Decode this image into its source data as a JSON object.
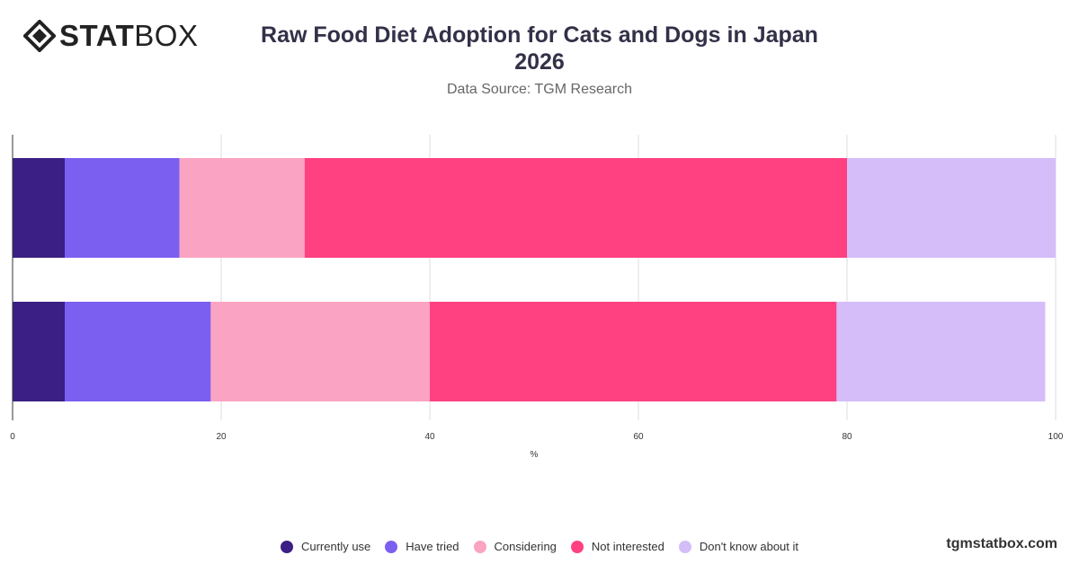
{
  "brand": {
    "logo_strong": "STAT",
    "logo_light": "BOX",
    "footer": "tgmstatbox.com"
  },
  "header": {
    "title_line1": "Raw Food Diet Adoption for Cats and Dogs in Japan",
    "title_line2": "2026",
    "subtitle": "Data Source: TGM Research"
  },
  "chart_data": {
    "type": "bar",
    "orientation": "horizontal",
    "stacked": true,
    "categories": [
      "",
      ""
    ],
    "series": [
      {
        "name": "Currently use",
        "color": "#3b1f84",
        "values": [
          5,
          5
        ]
      },
      {
        "name": "Have tried",
        "color": "#7b5ff0",
        "values": [
          11,
          14
        ]
      },
      {
        "name": "Considering",
        "color": "#fba3c3",
        "values": [
          12,
          21
        ]
      },
      {
        "name": "Not interested",
        "color": "#ff4081",
        "values": [
          52,
          39
        ]
      },
      {
        "name": "Don't know about it",
        "color": "#d4bdf9",
        "values": [
          20,
          20
        ]
      }
    ],
    "xlabel": "%",
    "xlim": [
      0,
      100
    ],
    "xticks": [
      0,
      20,
      40,
      60,
      80,
      100
    ],
    "grid": true,
    "legend_position": "bottom"
  }
}
